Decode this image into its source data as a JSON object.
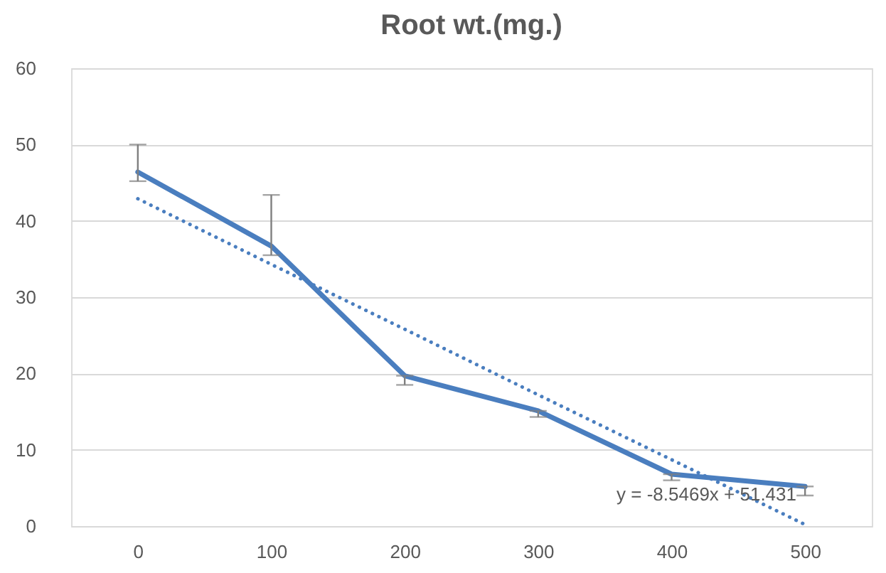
{
  "chart_data": {
    "type": "line",
    "title": "Root wt.(mg.)",
    "categories": [
      "0",
      "100",
      "200",
      "300",
      "400",
      "500"
    ],
    "series": [
      {
        "color": "#4a7ebf",
        "line_style": "solid",
        "values": [
          46.4,
          36.7,
          19.7,
          15.1,
          6.8,
          5.2
        ],
        "errors": [
          [
            45.2,
            50
          ],
          [
            35.5,
            43.4
          ],
          [
            18.5,
            19.7
          ],
          [
            14.3,
            15.1
          ],
          [
            6.0,
            6.8
          ],
          [
            4.0,
            5.2
          ]
        ]
      },
      {
        "type": "line",
        "color": "#4a7ebf",
        "line_style": "dotted",
        "values": [
          42.9,
          34.3,
          25.8,
          17.2,
          8.7,
          0.2
        ]
      }
    ],
    "ylim": [
      0,
      60
    ],
    "yticks": [
      0,
      10,
      20,
      30,
      40,
      50,
      60
    ],
    "grid": "y",
    "marker": "none",
    "annotations": [
      "y = -8.5469x + 51.431"
    ]
  }
}
